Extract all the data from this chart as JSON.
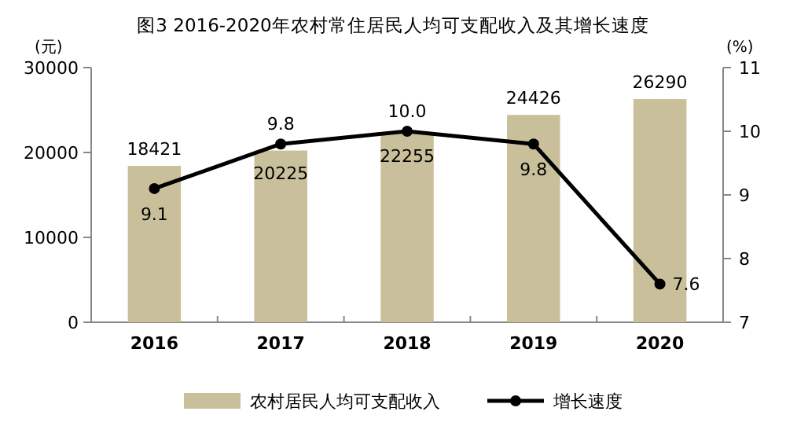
{
  "chart_data": {
    "type": "bar",
    "title": "图3 2016-2020年农村常住居民人均可支配收入及其增长速度",
    "ylabel": "(元)",
    "y2label": "(%)",
    "categories": [
      "2016",
      "2017",
      "2018",
      "2019",
      "2020"
    ],
    "series": [
      {
        "name": "农村居民人均可支配收入",
        "color": "#c9c09b",
        "values": [
          18421,
          20225,
          22255,
          24426,
          26290
        ]
      },
      {
        "name": "增长速度",
        "type": "line",
        "axis": "y2",
        "color": "#000000",
        "values": [
          9.1,
          9.8,
          10.0,
          9.8,
          7.6
        ],
        "value_labels": [
          "9.1",
          "9.8",
          "10.0",
          "9.8",
          "7.6"
        ]
      }
    ],
    "ylim": [
      0,
      30000
    ],
    "yticks": [
      0,
      10000,
      20000,
      30000
    ],
    "y2lim": [
      7,
      11
    ],
    "y2ticks": [
      7,
      8,
      9,
      10,
      11
    ],
    "data_labels": true,
    "legend": "bottom",
    "marker": "circle",
    "grid": false
  }
}
